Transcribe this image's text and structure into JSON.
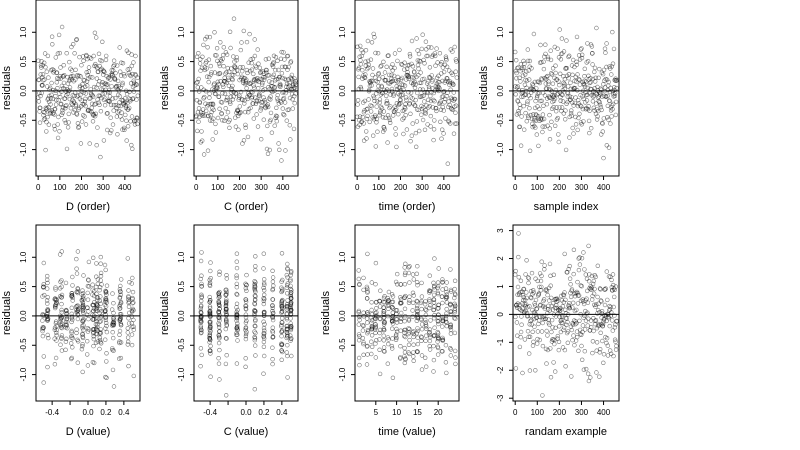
{
  "chart_data": [
    {
      "type": "scatter",
      "xlabel": "D (order)",
      "ylabel": "residuals",
      "xlim": [
        -10,
        470
      ],
      "ylim": [
        -1.45,
        1.55
      ],
      "xticks": [
        0,
        100,
        200,
        300,
        400
      ],
      "xtick_labels": [
        "0",
        "100",
        "200",
        "300",
        "400"
      ],
      "yticks": [
        -1.0,
        -0.5,
        0.0,
        0.5,
        1.0
      ],
      "ytick_labels": [
        "-1.0",
        "-0.5",
        "0.0",
        "0.5",
        "1.0"
      ],
      "hline": 0,
      "grid": false,
      "point_style": "open-circle",
      "points": {
        "generator": "uniform",
        "n": 430,
        "xmin": 0,
        "xmax": 460,
        "sd": 0.4,
        "clip": 1.4,
        "seed": 11
      }
    },
    {
      "type": "scatter",
      "xlabel": "C (order)",
      "ylabel": "residuals",
      "xlim": [
        -10,
        470
      ],
      "ylim": [
        -1.45,
        1.55
      ],
      "xticks": [
        0,
        100,
        200,
        300,
        400
      ],
      "xtick_labels": [
        "0",
        "100",
        "200",
        "300",
        "400"
      ],
      "yticks": [
        -1.0,
        -0.5,
        0.0,
        0.5,
        1.0
      ],
      "ytick_labels": [
        "-1.0",
        "-0.5",
        "0.0",
        "0.5",
        "1.0"
      ],
      "hline": 0,
      "grid": false,
      "point_style": "open-circle",
      "points": {
        "generator": "uniform",
        "n": 430,
        "xmin": 0,
        "xmax": 460,
        "sd": 0.4,
        "clip": 1.4,
        "seed": 23
      }
    },
    {
      "type": "scatter",
      "xlabel": "time (order)",
      "ylabel": "residuals",
      "xlim": [
        -10,
        470
      ],
      "ylim": [
        -1.45,
        1.55
      ],
      "xticks": [
        0,
        100,
        200,
        300,
        400
      ],
      "xtick_labels": [
        "0",
        "100",
        "200",
        "300",
        "400"
      ],
      "yticks": [
        -1.0,
        -0.5,
        0.0,
        0.5,
        1.0
      ],
      "ytick_labels": [
        "-1.0",
        "-0.5",
        "0.0",
        "0.5",
        "1.0"
      ],
      "hline": 0,
      "grid": false,
      "point_style": "open-circle",
      "points": {
        "generator": "uniform",
        "n": 430,
        "xmin": 0,
        "xmax": 460,
        "sd": 0.4,
        "clip": 1.4,
        "seed": 37
      }
    },
    {
      "type": "scatter",
      "xlabel": "sample index",
      "ylabel": "residuals",
      "xlim": [
        -10,
        470
      ],
      "ylim": [
        -1.45,
        1.55
      ],
      "xticks": [
        0,
        100,
        200,
        300,
        400
      ],
      "xtick_labels": [
        "0",
        "100",
        "200",
        "300",
        "400"
      ],
      "yticks": [
        -1.0,
        -0.5,
        0.0,
        0.5,
        1.0
      ],
      "ytick_labels": [
        "-1.0",
        "-0.5",
        "0.0",
        "0.5",
        "1.0"
      ],
      "hline": 0,
      "grid": false,
      "point_style": "open-circle",
      "points": {
        "generator": "uniform",
        "n": 430,
        "xmin": 0,
        "xmax": 460,
        "sd": 0.4,
        "clip": 1.4,
        "seed": 41
      }
    },
    {
      "type": "scatter",
      "xlabel": "D (value)",
      "ylabel": "residuals",
      "xlim": [
        -0.58,
        0.58
      ],
      "ylim": [
        -1.45,
        1.55
      ],
      "xticks": [
        -0.4,
        -0.2,
        0.0,
        0.2,
        0.4
      ],
      "xtick_labels": [
        "-0.4",
        "",
        "0.0",
        "0.2",
        "0.4"
      ],
      "yticks": [
        -1.0,
        -0.5,
        0.0,
        0.5,
        1.0
      ],
      "ytick_labels": [
        "-1.0",
        "-0.5",
        "0.0",
        "0.5",
        "1.0"
      ],
      "hline": 0,
      "grid": false,
      "point_style": "open-circle",
      "points": {
        "generator": "levels",
        "n": 430,
        "levels": [
          -0.5,
          -0.45,
          -0.36,
          -0.3,
          -0.24,
          -0.18,
          -0.12,
          -0.06,
          0.0,
          0.06,
          0.1,
          0.14,
          0.2,
          0.28,
          0.36,
          0.45,
          0.5
        ],
        "jitter": 0.012,
        "sd": 0.4,
        "clip": 1.4,
        "seed": 53
      }
    },
    {
      "type": "scatter",
      "xlabel": "C (value)",
      "ylabel": "residuals",
      "xlim": [
        -0.58,
        0.58
      ],
      "ylim": [
        -1.45,
        1.55
      ],
      "xticks": [
        -0.4,
        -0.2,
        0.0,
        0.2,
        0.4
      ],
      "xtick_labels": [
        "-0.4",
        "",
        "0.0",
        "0.2",
        "0.4"
      ],
      "yticks": [
        -1.0,
        -0.5,
        0.0,
        0.5,
        1.0
      ],
      "ytick_labels": [
        "-1.0",
        "-0.5",
        "0.0",
        "0.5",
        "1.0"
      ],
      "hline": 0,
      "grid": false,
      "point_style": "open-circle",
      "points": {
        "generator": "levels",
        "n": 430,
        "levels": [
          -0.5,
          -0.4,
          -0.3,
          -0.22,
          -0.1,
          0.0,
          0.1,
          0.2,
          0.3,
          0.4,
          0.46,
          0.5
        ],
        "jitter": 0.006,
        "sd": 0.4,
        "clip": 1.4,
        "seed": 67
      }
    },
    {
      "type": "scatter",
      "xlabel": "time (value)",
      "ylabel": "residuals",
      "xlim": [
        0,
        25
      ],
      "ylim": [
        -1.45,
        1.55
      ],
      "xticks": [
        5,
        10,
        15,
        20
      ],
      "xtick_labels": [
        "5",
        "10",
        "15",
        "20"
      ],
      "yticks": [
        -1.0,
        -0.5,
        0.0,
        0.5,
        1.0
      ],
      "ytick_labels": [
        "-1.0",
        "-0.5",
        "0.0",
        "0.5",
        "1.0"
      ],
      "hline": 0,
      "grid": false,
      "point_style": "open-circle",
      "points": {
        "generator": "levels",
        "n": 430,
        "levels": [
          1,
          2,
          3,
          4,
          5,
          6,
          7,
          8,
          9,
          10,
          11,
          12,
          13,
          14,
          15,
          16,
          17,
          18,
          19,
          20,
          21,
          22,
          23,
          24
        ],
        "jitter": 0.15,
        "sd": 0.4,
        "clip": 1.4,
        "seed": 79
      }
    },
    {
      "type": "scatter",
      "xlabel": "randam example",
      "ylabel": "residuals",
      "xlim": [
        -10,
        470
      ],
      "ylim": [
        -3.1,
        3.2
      ],
      "xticks": [
        0,
        100,
        200,
        300,
        400
      ],
      "xtick_labels": [
        "0",
        "100",
        "200",
        "300",
        "400"
      ],
      "yticks": [
        -3,
        -2,
        -1,
        0,
        1,
        2,
        3
      ],
      "ytick_labels": [
        "-3",
        "-2",
        "-1",
        "0",
        "1",
        "2",
        "3"
      ],
      "hline": 0,
      "grid": false,
      "point_style": "open-circle",
      "points": {
        "generator": "uniform",
        "n": 430,
        "xmin": 0,
        "xmax": 460,
        "sd": 1.0,
        "clip": 2.9,
        "seed": 97
      }
    }
  ]
}
